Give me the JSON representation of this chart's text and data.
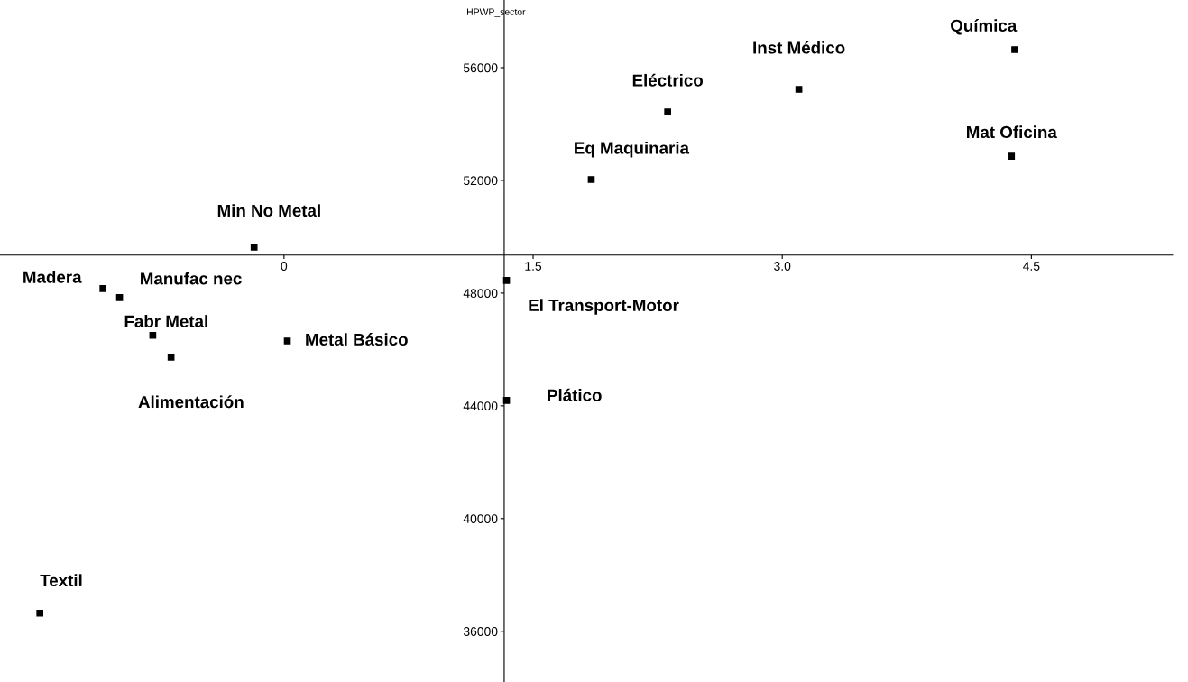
{
  "chart_data": {
    "type": "scatter",
    "ylabel": "HPWP_sector",
    "x": [
      4.4,
      3.1,
      2.31,
      4.38,
      1.85,
      -0.18,
      -1.09,
      -0.99,
      -0.79,
      -0.68,
      0.02,
      1.34,
      1.34,
      -1.47
    ],
    "values": [
      56640,
      55230,
      54430,
      52860,
      52030,
      49630,
      48160,
      47840,
      46500,
      45730,
      46300,
      48450,
      44190,
      36640
    ],
    "color": "#000000",
    "marker": "square",
    "grid": false,
    "xlim": [
      -1.71,
      5.35
    ],
    "ylim": [
      34200,
      58400
    ],
    "xticks": [
      0,
      1.5,
      {
        "value": 3.0,
        "label": "3.0"
      },
      4.5
    ],
    "yticks": [
      36000,
      40000,
      44000,
      48000,
      52000,
      56000
    ],
    "annotations": [
      {
        "text": "Química",
        "x": 4.4,
        "y": 56640
      },
      {
        "text": "Inst Médico",
        "x": 3.1,
        "y": 55230
      },
      {
        "text": "Eléctrico",
        "x": 2.31,
        "y": 54430
      },
      {
        "text": "Mat Oficina",
        "x": 4.38,
        "y": 52860
      },
      {
        "text": "Eq Maquinaria",
        "x": 1.85,
        "y": 52030
      },
      {
        "text": "Min No Metal",
        "x": -0.18,
        "y": 49630
      },
      {
        "text": "Madera",
        "x": -1.09,
        "y": 48160
      },
      {
        "text": "Manufac nec",
        "x": -0.99,
        "y": 47840
      },
      {
        "text": "Fabr Metal",
        "x": -0.79,
        "y": 46500
      },
      {
        "text": "Alimentación",
        "x": -0.68,
        "y": 45730
      },
      {
        "text": "Metal Básico",
        "x": 0.02,
        "y": 46300
      },
      {
        "text": "El Transport-Motor",
        "x": 1.34,
        "y": 48450
      },
      {
        "text": "Plático",
        "x": 1.34,
        "y": 44190
      },
      {
        "text": "Textil",
        "x": -1.47,
        "y": 36640
      }
    ]
  }
}
